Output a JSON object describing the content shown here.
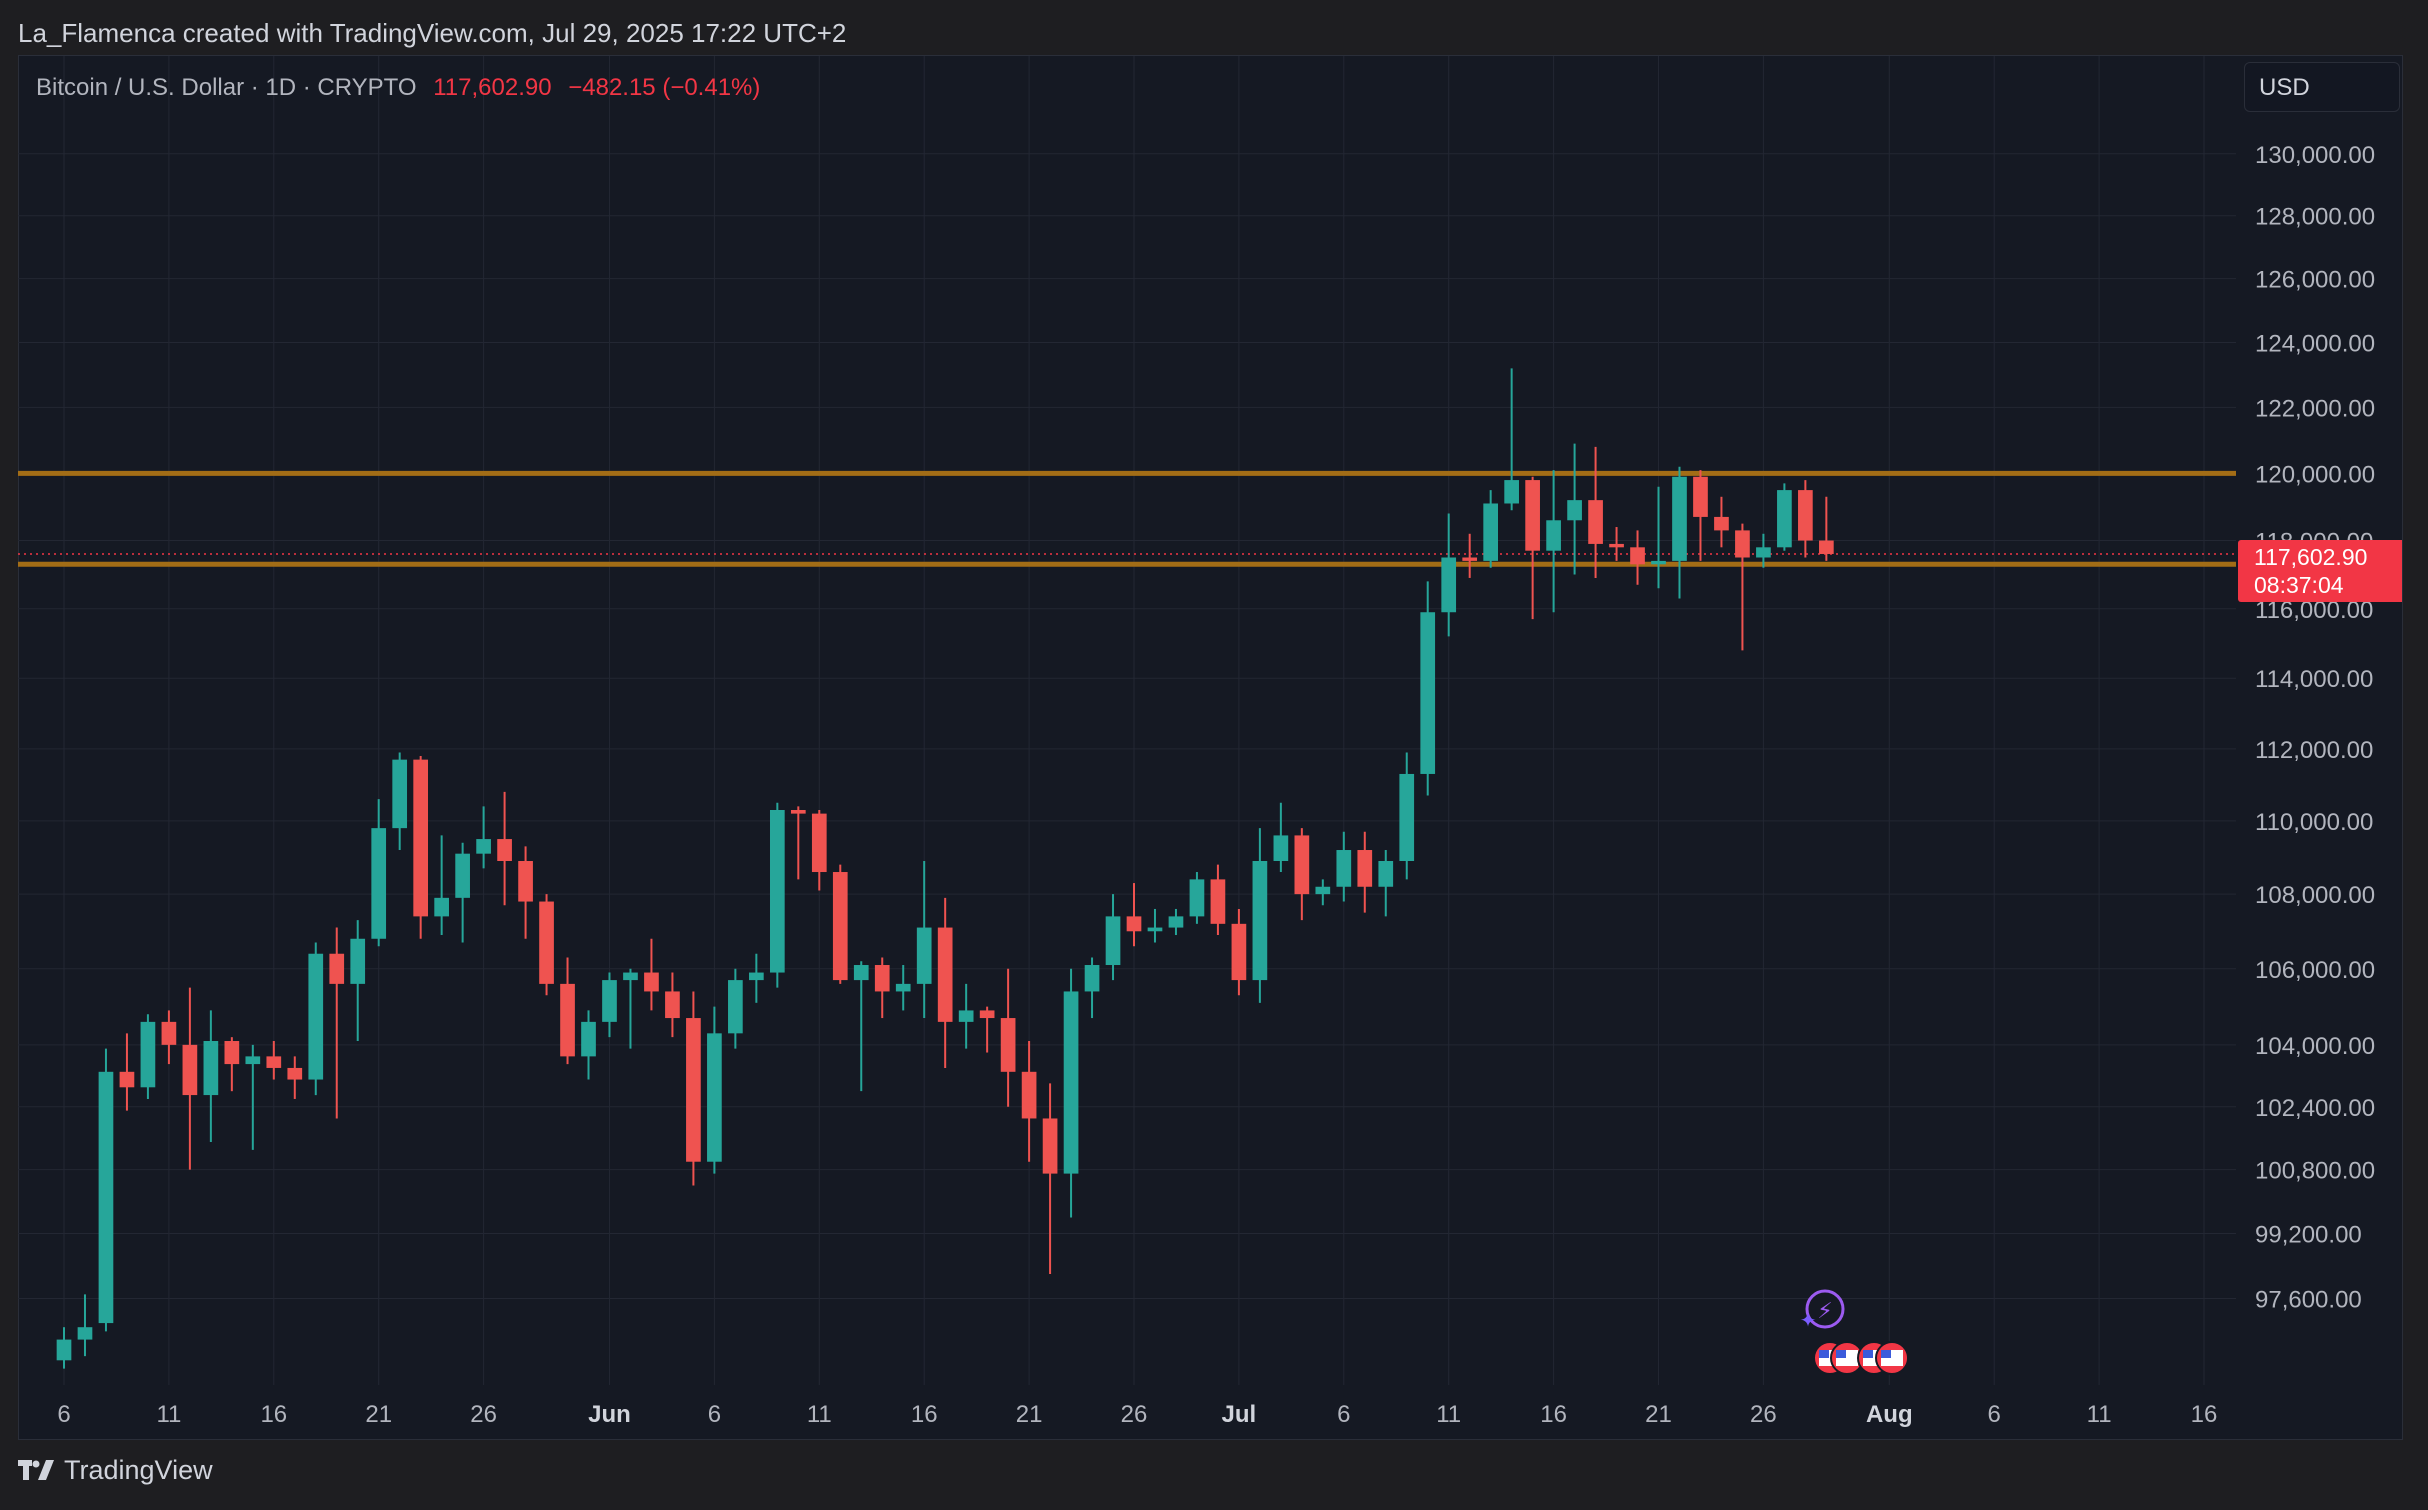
{
  "header": {
    "text": "La_Flamenca created with TradingView.com, Jul 29, 2025 17:22 UTC+2"
  },
  "legend": {
    "symbol": "Bitcoin / U.S. Dollar · 1D · CRYPTO",
    "price": "117,602.90",
    "change": "−482.15 (−0.41%)"
  },
  "currency": "USD",
  "price_tag": {
    "price": "117,602.90",
    "countdown": "08:37:04"
  },
  "footer": {
    "brand": "TradingView"
  },
  "colors": {
    "up": "#26a69a",
    "down": "#ef5350",
    "level": "#a36d16",
    "background": "#151923",
    "grid": "#232733",
    "text": "#b2b5be"
  },
  "chart_data": {
    "type": "candlestick",
    "y_scale": "log",
    "ylim": [
      96300,
      131500
    ],
    "y_ticks": [
      "130,000.00",
      "128,000.00",
      "126,000.00",
      "124,000.00",
      "122,000.00",
      "120,000.00",
      "118,000.00",
      "116,000.00",
      "114,000.00",
      "112,000.00",
      "110,000.00",
      "108,000.00",
      "106,000.00",
      "104,000.00",
      "102,400.00",
      "100,800.00",
      "99,200.00",
      "97,600.00"
    ],
    "x_ticks": [
      {
        "label": "6",
        "date": "2025-05-06"
      },
      {
        "label": "11",
        "date": "2025-05-11"
      },
      {
        "label": "16",
        "date": "2025-05-16"
      },
      {
        "label": "21",
        "date": "2025-05-21"
      },
      {
        "label": "26",
        "date": "2025-05-26"
      },
      {
        "label": "Jun",
        "date": "2025-06-01",
        "bold": true
      },
      {
        "label": "6",
        "date": "2025-06-06"
      },
      {
        "label": "11",
        "date": "2025-06-11"
      },
      {
        "label": "16",
        "date": "2025-06-16"
      },
      {
        "label": "21",
        "date": "2025-06-21"
      },
      {
        "label": "26",
        "date": "2025-06-26"
      },
      {
        "label": "Jul",
        "date": "2025-07-01",
        "bold": true
      },
      {
        "label": "6",
        "date": "2025-07-06"
      },
      {
        "label": "11",
        "date": "2025-07-11"
      },
      {
        "label": "16",
        "date": "2025-07-16"
      },
      {
        "label": "21",
        "date": "2025-07-21"
      },
      {
        "label": "26",
        "date": "2025-07-26"
      },
      {
        "label": "Aug",
        "date": "2025-08-01",
        "bold": true
      },
      {
        "label": "6",
        "date": "2025-08-06"
      },
      {
        "label": "11",
        "date": "2025-08-11"
      },
      {
        "label": "16",
        "date": "2025-08-16"
      }
    ],
    "x_range": [
      "2025-05-06",
      "2025-08-16"
    ],
    "horizontal_levels": [
      120000,
      117300
    ],
    "last_price": 117602.9,
    "candles": [
      {
        "date": "2025-05-06",
        "o": 96100,
        "h": 96900,
        "l": 95900,
        "c": 96600
      },
      {
        "date": "2025-05-07",
        "o": 96600,
        "h": 97700,
        "l": 96200,
        "c": 96900
      },
      {
        "date": "2025-05-08",
        "o": 97000,
        "h": 103900,
        "l": 96800,
        "c": 103300
      },
      {
        "date": "2025-05-09",
        "o": 103300,
        "h": 104300,
        "l": 102300,
        "c": 102900
      },
      {
        "date": "2025-05-10",
        "o": 102900,
        "h": 104800,
        "l": 102600,
        "c": 104600
      },
      {
        "date": "2025-05-11",
        "o": 104600,
        "h": 104900,
        "l": 103500,
        "c": 104000
      },
      {
        "date": "2025-05-12",
        "o": 104000,
        "h": 105500,
        "l": 100800,
        "c": 102700
      },
      {
        "date": "2025-05-13",
        "o": 102700,
        "h": 104900,
        "l": 101500,
        "c": 104100
      },
      {
        "date": "2025-05-14",
        "o": 104100,
        "h": 104200,
        "l": 102800,
        "c": 103500
      },
      {
        "date": "2025-05-15",
        "o": 103500,
        "h": 104000,
        "l": 101300,
        "c": 103700
      },
      {
        "date": "2025-05-16",
        "o": 103700,
        "h": 104100,
        "l": 103100,
        "c": 103400
      },
      {
        "date": "2025-05-17",
        "o": 103400,
        "h": 103700,
        "l": 102600,
        "c": 103100
      },
      {
        "date": "2025-05-18",
        "o": 103100,
        "h": 106700,
        "l": 102700,
        "c": 106400
      },
      {
        "date": "2025-05-19",
        "o": 106400,
        "h": 107100,
        "l": 102100,
        "c": 105600
      },
      {
        "date": "2025-05-20",
        "o": 105600,
        "h": 107300,
        "l": 104100,
        "c": 106800
      },
      {
        "date": "2025-05-21",
        "o": 106800,
        "h": 110600,
        "l": 106600,
        "c": 109800
      },
      {
        "date": "2025-05-22",
        "o": 109800,
        "h": 111900,
        "l": 109200,
        "c": 111700
      },
      {
        "date": "2025-05-23",
        "o": 111700,
        "h": 111800,
        "l": 106800,
        "c": 107400
      },
      {
        "date": "2025-05-24",
        "o": 107400,
        "h": 109600,
        "l": 106900,
        "c": 107900
      },
      {
        "date": "2025-05-25",
        "o": 107900,
        "h": 109400,
        "l": 106700,
        "c": 109100
      },
      {
        "date": "2025-05-26",
        "o": 109100,
        "h": 110400,
        "l": 108700,
        "c": 109500
      },
      {
        "date": "2025-05-27",
        "o": 109500,
        "h": 110800,
        "l": 107700,
        "c": 108900
      },
      {
        "date": "2025-05-28",
        "o": 108900,
        "h": 109300,
        "l": 106800,
        "c": 107800
      },
      {
        "date": "2025-05-29",
        "o": 107800,
        "h": 108000,
        "l": 105300,
        "c": 105600
      },
      {
        "date": "2025-05-30",
        "o": 105600,
        "h": 106300,
        "l": 103500,
        "c": 103700
      },
      {
        "date": "2025-05-31",
        "o": 103700,
        "h": 104900,
        "l": 103100,
        "c": 104600
      },
      {
        "date": "2025-06-01",
        "o": 104600,
        "h": 105900,
        "l": 104200,
        "c": 105700
      },
      {
        "date": "2025-06-02",
        "o": 105700,
        "h": 106000,
        "l": 103900,
        "c": 105900
      },
      {
        "date": "2025-06-03",
        "o": 105900,
        "h": 106800,
        "l": 104900,
        "c": 105400
      },
      {
        "date": "2025-06-04",
        "o": 105400,
        "h": 105900,
        "l": 104200,
        "c": 104700
      },
      {
        "date": "2025-06-05",
        "o": 104700,
        "h": 105400,
        "l": 100400,
        "c": 101000
      },
      {
        "date": "2025-06-06",
        "o": 101000,
        "h": 105000,
        "l": 100700,
        "c": 104300
      },
      {
        "date": "2025-06-07",
        "o": 104300,
        "h": 106000,
        "l": 103900,
        "c": 105700
      },
      {
        "date": "2025-06-08",
        "o": 105700,
        "h": 106400,
        "l": 105100,
        "c": 105900
      },
      {
        "date": "2025-06-09",
        "o": 105900,
        "h": 110500,
        "l": 105500,
        "c": 110300
      },
      {
        "date": "2025-06-10",
        "o": 110300,
        "h": 110400,
        "l": 108400,
        "c": 110200
      },
      {
        "date": "2025-06-11",
        "o": 110200,
        "h": 110300,
        "l": 108100,
        "c": 108600
      },
      {
        "date": "2025-06-12",
        "o": 108600,
        "h": 108800,
        "l": 105600,
        "c": 105700
      },
      {
        "date": "2025-06-13",
        "o": 105700,
        "h": 106200,
        "l": 102800,
        "c": 106100
      },
      {
        "date": "2025-06-14",
        "o": 106100,
        "h": 106300,
        "l": 104700,
        "c": 105400
      },
      {
        "date": "2025-06-15",
        "o": 105400,
        "h": 106100,
        "l": 104900,
        "c": 105600
      },
      {
        "date": "2025-06-16",
        "o": 105600,
        "h": 108900,
        "l": 104700,
        "c": 107100
      },
      {
        "date": "2025-06-17",
        "o": 107100,
        "h": 107900,
        "l": 103400,
        "c": 104600
      },
      {
        "date": "2025-06-18",
        "o": 104600,
        "h": 105600,
        "l": 103900,
        "c": 104900
      },
      {
        "date": "2025-06-19",
        "o": 104900,
        "h": 105000,
        "l": 103800,
        "c": 104700
      },
      {
        "date": "2025-06-20",
        "o": 104700,
        "h": 106000,
        "l": 102400,
        "c": 103300
      },
      {
        "date": "2025-06-21",
        "o": 103300,
        "h": 104100,
        "l": 101000,
        "c": 102100
      },
      {
        "date": "2025-06-22",
        "o": 102100,
        "h": 103000,
        "l": 98200,
        "c": 100700
      },
      {
        "date": "2025-06-23",
        "o": 100700,
        "h": 106000,
        "l": 99600,
        "c": 105400
      },
      {
        "date": "2025-06-24",
        "o": 105400,
        "h": 106300,
        "l": 104700,
        "c": 106100
      },
      {
        "date": "2025-06-25",
        "o": 106100,
        "h": 108000,
        "l": 105700,
        "c": 107400
      },
      {
        "date": "2025-06-26",
        "o": 107400,
        "h": 108300,
        "l": 106600,
        "c": 107000
      },
      {
        "date": "2025-06-27",
        "o": 107000,
        "h": 107600,
        "l": 106700,
        "c": 107100
      },
      {
        "date": "2025-06-28",
        "o": 107100,
        "h": 107600,
        "l": 106900,
        "c": 107400
      },
      {
        "date": "2025-06-29",
        "o": 107400,
        "h": 108600,
        "l": 107200,
        "c": 108400
      },
      {
        "date": "2025-06-30",
        "o": 108400,
        "h": 108800,
        "l": 106900,
        "c": 107200
      },
      {
        "date": "2025-07-01",
        "o": 107200,
        "h": 107600,
        "l": 105300,
        "c": 105700
      },
      {
        "date": "2025-07-02",
        "o": 105700,
        "h": 109800,
        "l": 105100,
        "c": 108900
      },
      {
        "date": "2025-07-03",
        "o": 108900,
        "h": 110500,
        "l": 108600,
        "c": 109600
      },
      {
        "date": "2025-07-04",
        "o": 109600,
        "h": 109800,
        "l": 107300,
        "c": 108000
      },
      {
        "date": "2025-07-05",
        "o": 108000,
        "h": 108400,
        "l": 107700,
        "c": 108200
      },
      {
        "date": "2025-07-06",
        "o": 108200,
        "h": 109700,
        "l": 107800,
        "c": 109200
      },
      {
        "date": "2025-07-07",
        "o": 109200,
        "h": 109700,
        "l": 107500,
        "c": 108200
      },
      {
        "date": "2025-07-08",
        "o": 108200,
        "h": 109200,
        "l": 107400,
        "c": 108900
      },
      {
        "date": "2025-07-09",
        "o": 108900,
        "h": 111900,
        "l": 108400,
        "c": 111300
      },
      {
        "date": "2025-07-10",
        "o": 111300,
        "h": 116800,
        "l": 110700,
        "c": 115900
      },
      {
        "date": "2025-07-11",
        "o": 115900,
        "h": 118800,
        "l": 115200,
        "c": 117500
      },
      {
        "date": "2025-07-12",
        "o": 117500,
        "h": 118200,
        "l": 116900,
        "c": 117400
      },
      {
        "date": "2025-07-13",
        "o": 117400,
        "h": 119500,
        "l": 117200,
        "c": 119100
      },
      {
        "date": "2025-07-14",
        "o": 119100,
        "h": 123200,
        "l": 118900,
        "c": 119800
      },
      {
        "date": "2025-07-15",
        "o": 119800,
        "h": 119900,
        "l": 115700,
        "c": 117700
      },
      {
        "date": "2025-07-16",
        "o": 117700,
        "h": 120100,
        "l": 115900,
        "c": 118600
      },
      {
        "date": "2025-07-17",
        "o": 118600,
        "h": 120900,
        "l": 117000,
        "c": 119200
      },
      {
        "date": "2025-07-18",
        "o": 119200,
        "h": 120800,
        "l": 116900,
        "c": 117900
      },
      {
        "date": "2025-07-19",
        "o": 117900,
        "h": 118400,
        "l": 117400,
        "c": 117800
      },
      {
        "date": "2025-07-20",
        "o": 117800,
        "h": 118300,
        "l": 116700,
        "c": 117300
      },
      {
        "date": "2025-07-21",
        "o": 117300,
        "h": 119600,
        "l": 116600,
        "c": 117400
      },
      {
        "date": "2025-07-22",
        "o": 117400,
        "h": 120200,
        "l": 116300,
        "c": 119900
      },
      {
        "date": "2025-07-23",
        "o": 119900,
        "h": 120100,
        "l": 117400,
        "c": 118700
      },
      {
        "date": "2025-07-24",
        "o": 118700,
        "h": 119300,
        "l": 117800,
        "c": 118300
      },
      {
        "date": "2025-07-25",
        "o": 118300,
        "h": 118500,
        "l": 114800,
        "c": 117500
      },
      {
        "date": "2025-07-26",
        "o": 117500,
        "h": 118200,
        "l": 117200,
        "c": 117800
      },
      {
        "date": "2025-07-27",
        "o": 117800,
        "h": 119700,
        "l": 117700,
        "c": 119500
      },
      {
        "date": "2025-07-28",
        "o": 119500,
        "h": 119800,
        "l": 117500,
        "c": 118000
      },
      {
        "date": "2025-07-29",
        "o": 118000,
        "h": 119300,
        "l": 117400,
        "c": 117603
      }
    ]
  }
}
